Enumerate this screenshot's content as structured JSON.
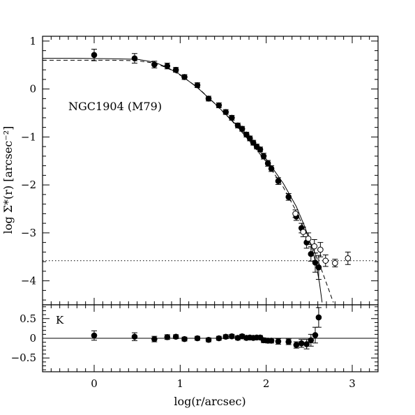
{
  "chart_data": [
    {
      "type": "scatter",
      "annotation": "NGC1904 (M79)",
      "xlabel": "log(r/arcsec)",
      "ylabel": "log Σ*(r) [arcsec⁻²]",
      "xlim": [
        -0.6,
        3.3
      ],
      "ylim": [
        -4.5,
        1.1
      ],
      "x_ticks": [
        "0",
        "1",
        "2",
        "3"
      ],
      "y_ticks": [
        "1",
        "0",
        "−1",
        "−2",
        "−3",
        "−4"
      ],
      "background_level": -3.58,
      "series": [
        {
          "style": "filled",
          "points": [
            {
              "x": 0.0,
              "y": 0.71,
              "err": 0.12
            },
            {
              "x": 0.47,
              "y": 0.64,
              "err": 0.1
            },
            {
              "x": 0.7,
              "y": 0.51,
              "err": 0.07
            },
            {
              "x": 0.85,
              "y": 0.48,
              "err": 0.06
            },
            {
              "x": 0.95,
              "y": 0.4,
              "err": 0.05
            },
            {
              "x": 1.05,
              "y": 0.25,
              "err": 0.05
            },
            {
              "x": 1.2,
              "y": 0.08,
              "err": 0.05
            },
            {
              "x": 1.33,
              "y": -0.2,
              "err": 0.05
            },
            {
              "x": 1.45,
              "y": -0.34,
              "err": 0.05
            },
            {
              "x": 1.53,
              "y": -0.48,
              "err": 0.05
            },
            {
              "x": 1.6,
              "y": -0.6,
              "err": 0.05
            },
            {
              "x": 1.67,
              "y": -0.76,
              "err": 0.05
            },
            {
              "x": 1.72,
              "y": -0.83,
              "err": 0.05
            },
            {
              "x": 1.77,
              "y": -0.95,
              "err": 0.05
            },
            {
              "x": 1.81,
              "y": -1.03,
              "err": 0.05
            },
            {
              "x": 1.85,
              "y": -1.12,
              "err": 0.05
            },
            {
              "x": 1.89,
              "y": -1.2,
              "err": 0.05
            },
            {
              "x": 1.93,
              "y": -1.26,
              "err": 0.05
            },
            {
              "x": 1.97,
              "y": -1.4,
              "err": 0.06
            },
            {
              "x": 2.02,
              "y": -1.55,
              "err": 0.06
            },
            {
              "x": 2.06,
              "y": -1.66,
              "err": 0.06
            },
            {
              "x": 2.14,
              "y": -1.92,
              "err": 0.07
            },
            {
              "x": 2.26,
              "y": -2.25,
              "err": 0.07
            },
            {
              "x": 2.35,
              "y": -2.66,
              "err": 0.08
            },
            {
              "x": 2.41,
              "y": -2.9,
              "err": 0.1
            },
            {
              "x": 2.47,
              "y": -3.2,
              "err": 0.12
            },
            {
              "x": 2.52,
              "y": -3.44,
              "err": 0.15
            },
            {
              "x": 2.57,
              "y": -3.62,
              "err": 0.2
            },
            {
              "x": 2.61,
              "y": -3.72,
              "err": 0.25
            }
          ]
        },
        {
          "style": "open",
          "points": [
            {
              "x": 2.34,
              "y": -2.6,
              "err": 0.08
            },
            {
              "x": 2.43,
              "y": -2.98,
              "err": 0.1
            },
            {
              "x": 2.49,
              "y": -3.12,
              "err": 0.12
            },
            {
              "x": 2.56,
              "y": -3.28,
              "err": 0.14
            },
            {
              "x": 2.63,
              "y": -3.35,
              "err": 0.15
            },
            {
              "x": 2.69,
              "y": -3.58,
              "err": 0.12
            },
            {
              "x": 2.8,
              "y": -3.63,
              "err": 0.08
            },
            {
              "x": 2.95,
              "y": -3.53,
              "err": 0.13
            }
          ]
        }
      ],
      "models": [
        {
          "style": "solid",
          "points": [
            [
              -0.6,
              0.64
            ],
            [
              -0.2,
              0.64
            ],
            [
              0.2,
              0.63
            ],
            [
              0.5,
              0.62
            ],
            [
              0.7,
              0.56
            ],
            [
              0.85,
              0.45
            ],
            [
              1.0,
              0.3
            ],
            [
              1.2,
              0.03
            ],
            [
              1.4,
              -0.3
            ],
            [
              1.6,
              -0.65
            ],
            [
              1.8,
              -1.03
            ],
            [
              2.0,
              -1.46
            ],
            [
              2.2,
              -1.97
            ],
            [
              2.35,
              -2.45
            ],
            [
              2.45,
              -2.88
            ],
            [
              2.52,
              -3.25
            ],
            [
              2.58,
              -3.65
            ],
            [
              2.62,
              -4.05
            ],
            [
              2.65,
              -4.45
            ]
          ]
        },
        {
          "style": "dashed",
          "points": [
            [
              -0.6,
              0.6
            ],
            [
              -0.2,
              0.6
            ],
            [
              0.2,
              0.6
            ],
            [
              0.5,
              0.59
            ],
            [
              0.7,
              0.54
            ],
            [
              0.85,
              0.44
            ],
            [
              1.0,
              0.29
            ],
            [
              1.2,
              0.04
            ],
            [
              1.4,
              -0.3
            ],
            [
              1.6,
              -0.66
            ],
            [
              1.8,
              -1.07
            ],
            [
              2.0,
              -1.52
            ],
            [
              2.2,
              -2.05
            ],
            [
              2.35,
              -2.55
            ],
            [
              2.45,
              -2.95
            ],
            [
              2.55,
              -3.35
            ],
            [
              2.65,
              -3.8
            ],
            [
              2.72,
              -4.15
            ],
            [
              2.78,
              -4.45
            ]
          ]
        }
      ]
    },
    {
      "type": "scatter",
      "panel_label": "K",
      "xlim": [
        -0.6,
        3.3
      ],
      "ylim": [
        -0.85,
        0.85
      ],
      "x_ticks": [
        "0",
        "1",
        "2",
        "3"
      ],
      "y_ticks": [
        "0.5",
        "0",
        "−0.5"
      ],
      "reference_line": 0,
      "points": [
        {
          "x": 0.0,
          "y": 0.07,
          "err": 0.12
        },
        {
          "x": 0.47,
          "y": 0.04,
          "err": 0.1
        },
        {
          "x": 0.7,
          "y": -0.02,
          "err": 0.07
        },
        {
          "x": 0.85,
          "y": 0.03,
          "err": 0.06
        },
        {
          "x": 0.95,
          "y": 0.04,
          "err": 0.05
        },
        {
          "x": 1.05,
          "y": -0.02,
          "err": 0.05
        },
        {
          "x": 1.2,
          "y": 0.0,
          "err": 0.05
        },
        {
          "x": 1.33,
          "y": -0.04,
          "err": 0.05
        },
        {
          "x": 1.45,
          "y": 0.0,
          "err": 0.05
        },
        {
          "x": 1.53,
          "y": 0.04,
          "err": 0.05
        },
        {
          "x": 1.6,
          "y": 0.05,
          "err": 0.05
        },
        {
          "x": 1.67,
          "y": 0.01,
          "err": 0.05
        },
        {
          "x": 1.72,
          "y": 0.05,
          "err": 0.05
        },
        {
          "x": 1.77,
          "y": 0.01,
          "err": 0.05
        },
        {
          "x": 1.81,
          "y": 0.02,
          "err": 0.05
        },
        {
          "x": 1.85,
          "y": 0.01,
          "err": 0.05
        },
        {
          "x": 1.89,
          "y": 0.02,
          "err": 0.05
        },
        {
          "x": 1.93,
          "y": 0.02,
          "err": 0.05
        },
        {
          "x": 1.97,
          "y": -0.05,
          "err": 0.06
        },
        {
          "x": 2.02,
          "y": -0.06,
          "err": 0.06
        },
        {
          "x": 2.06,
          "y": -0.06,
          "err": 0.06
        },
        {
          "x": 2.14,
          "y": -0.08,
          "err": 0.07
        },
        {
          "x": 2.26,
          "y": -0.09,
          "err": 0.07
        },
        {
          "x": 2.35,
          "y": -0.17,
          "err": 0.08
        },
        {
          "x": 2.41,
          "y": -0.13,
          "err": 0.1
        },
        {
          "x": 2.47,
          "y": -0.15,
          "err": 0.12
        },
        {
          "x": 2.52,
          "y": -0.05,
          "err": 0.15
        },
        {
          "x": 2.57,
          "y": 0.08,
          "err": 0.2
        },
        {
          "x": 2.61,
          "y": 0.53,
          "err": 0.25
        }
      ]
    }
  ]
}
